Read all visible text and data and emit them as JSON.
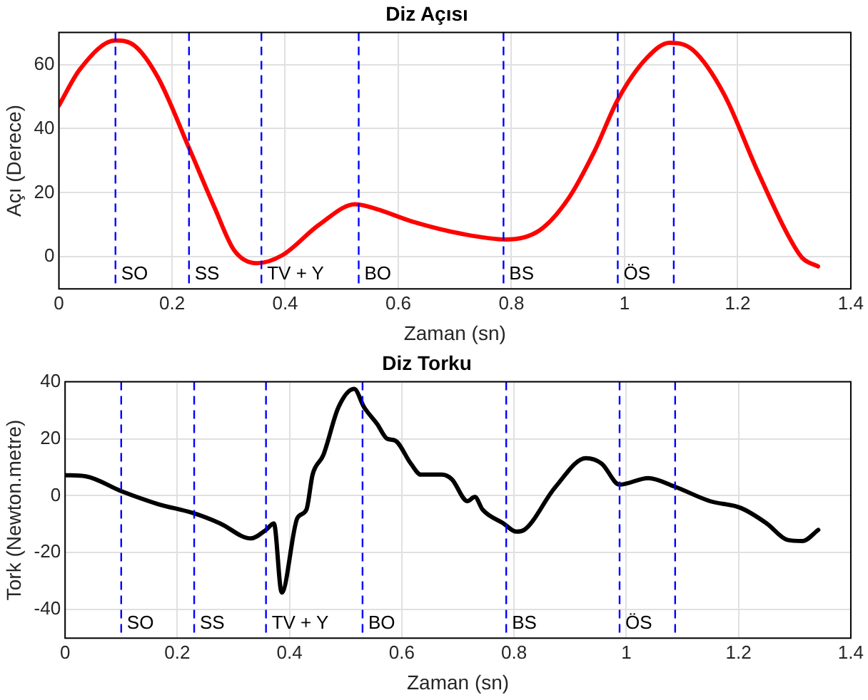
{
  "chart_data": [
    {
      "type": "line",
      "title": "Diz Açısı",
      "xlabel": "Zaman (sn)",
      "ylabel": "Açı (Derece)",
      "xlim": [
        0,
        1.4
      ],
      "xticks": [
        0,
        0.2,
        0.4,
        0.6,
        0.8,
        1,
        1.2,
        1.4
      ],
      "ylim": [
        -10,
        70
      ],
      "yticks": [
        0,
        20,
        40,
        60
      ],
      "grid": true,
      "legend": false,
      "line_style": "solid",
      "marker": "none",
      "series": [
        {
          "color": "#ff0000",
          "x": [
            0,
            0.037,
            0.1,
            0.133,
            0.175,
            0.23,
            0.276,
            0.31,
            0.35,
            0.395,
            0.46,
            0.524,
            0.56,
            0.625,
            0.717,
            0.79,
            0.85,
            0.9,
            0.947,
            0.988,
            1.039,
            1.08,
            1.121,
            1.176,
            1.232,
            1.287,
            1.314,
            1.342
          ],
          "values": [
            47.2,
            58.5,
            67.5,
            66,
            56,
            34,
            15,
            2,
            -2,
            0.5,
            10,
            16.4,
            15,
            11,
            7,
            5.4,
            8.3,
            18,
            33,
            49,
            62,
            66.8,
            64.5,
            50.7,
            28,
            7.4,
            -0.3,
            -3
          ]
        }
      ],
      "ref_lines": [
        {
          "axis": "x",
          "value": 0.1,
          "label": "SO",
          "color": "#0000ff",
          "line_style": "dashed"
        },
        {
          "axis": "x",
          "value": 0.23,
          "label": "SS",
          "color": "#0000ff",
          "line_style": "dashed"
        },
        {
          "axis": "x",
          "value": 0.358,
          "label": "TV + Y",
          "color": "#0000ff",
          "line_style": "dashed"
        },
        {
          "axis": "x",
          "value": 0.53,
          "label": "BO",
          "color": "#0000ff",
          "line_style": "dashed"
        },
        {
          "axis": "x",
          "value": 0.786,
          "label": "BS",
          "color": "#0000ff",
          "line_style": "dashed"
        },
        {
          "axis": "x",
          "value": 0.988,
          "label": "ÖS",
          "color": "#0000ff",
          "line_style": "dashed"
        },
        {
          "axis": "x",
          "value": 1.087,
          "color": "#0000ff",
          "line_style": "dashed"
        }
      ]
    },
    {
      "type": "line",
      "title": "Diz Torku",
      "xlabel": "Zaman (sn)",
      "ylabel": "Tork (Newton.metre)",
      "xlim": [
        0,
        1.4
      ],
      "xticks": [
        0,
        0.2,
        0.4,
        0.6,
        0.8,
        1,
        1.2,
        1.4
      ],
      "ylim": [
        -50,
        40
      ],
      "yticks": [
        -40,
        -20,
        0,
        20,
        40
      ],
      "grid": true,
      "legend": false,
      "line_style": "solid",
      "marker": "none",
      "series": [
        {
          "color": "#000000",
          "x": [
            0,
            0.037,
            0.1,
            0.165,
            0.23,
            0.276,
            0.331,
            0.358,
            0.372,
            0.386,
            0.414,
            0.43,
            0.441,
            0.46,
            0.487,
            0.515,
            0.533,
            0.556,
            0.574,
            0.588,
            0.616,
            0.634,
            0.671,
            0.689,
            0.717,
            0.73,
            0.744,
            0.781,
            0.804,
            0.818,
            0.873,
            0.928,
            0.956,
            0.988,
            1.039,
            1.085,
            1.149,
            1.204,
            1.25,
            1.287,
            1.314,
            1.342
          ],
          "values": [
            7.2,
            6.8,
            1.6,
            -2.9,
            -6.2,
            -9.7,
            -15,
            -12,
            -9.7,
            -34,
            -7.8,
            -4.9,
            7.4,
            14.2,
            31,
            37.5,
            31,
            25.2,
            20,
            19.4,
            11.3,
            7.4,
            7.4,
            5.8,
            -1.9,
            -0.4,
            -4.9,
            -9.7,
            -12.6,
            -12,
            2.9,
            13.2,
            11.3,
            3.9,
            6.2,
            3.3,
            -1.9,
            -4.3,
            -9.7,
            -15.5,
            -15.9,
            -12
          ]
        }
      ],
      "ref_lines": [
        {
          "axis": "x",
          "value": 0.1,
          "label": "SO",
          "color": "#0000ff",
          "line_style": "dashed"
        },
        {
          "axis": "x",
          "value": 0.23,
          "label": "SS",
          "color": "#0000ff",
          "line_style": "dashed"
        },
        {
          "axis": "x",
          "value": 0.358,
          "label": "TV + Y",
          "color": "#0000ff",
          "line_style": "dashed"
        },
        {
          "axis": "x",
          "value": 0.53,
          "label": "BO",
          "color": "#0000ff",
          "line_style": "dashed"
        },
        {
          "axis": "x",
          "value": 0.786,
          "label": "BS",
          "color": "#0000ff",
          "line_style": "dashed"
        },
        {
          "axis": "x",
          "value": 0.988,
          "label": "ÖS",
          "color": "#0000ff",
          "line_style": "dashed"
        },
        {
          "axis": "x",
          "value": 1.087,
          "color": "#0000ff",
          "line_style": "dashed"
        }
      ]
    }
  ]
}
